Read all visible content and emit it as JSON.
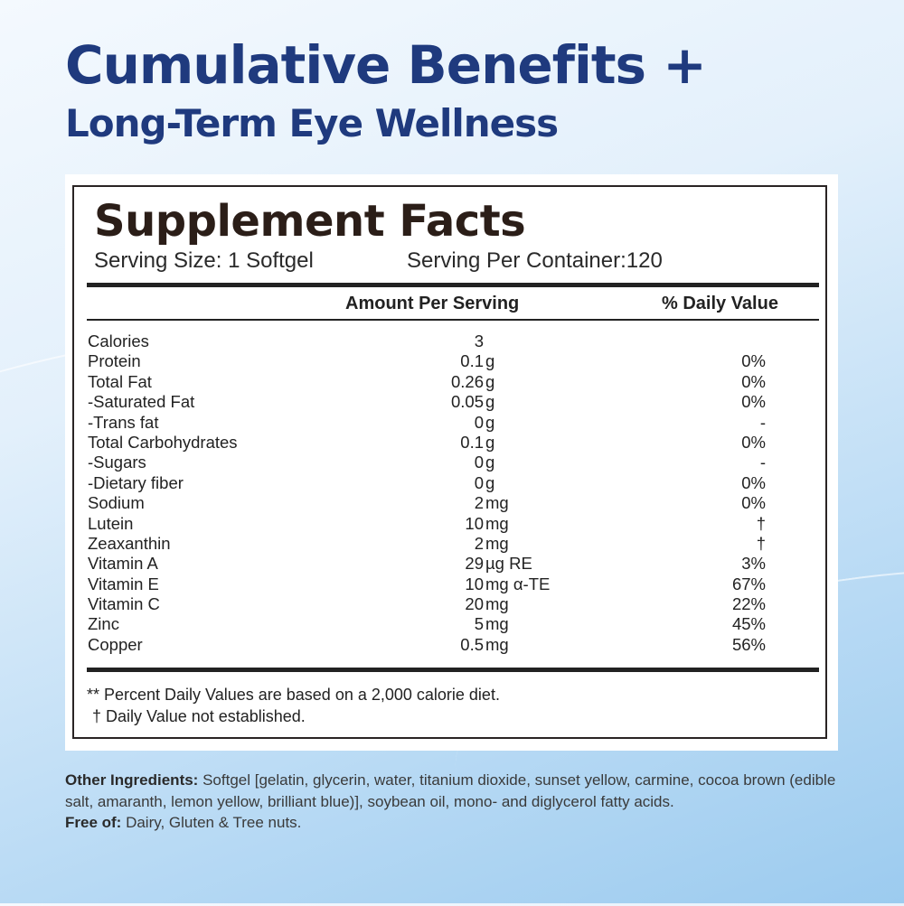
{
  "title": {
    "line1": "Cumulative Benefits +",
    "line2": "Long-Term Eye Wellness"
  },
  "facts": {
    "heading": "Supplement Facts",
    "serving_size": "Serving Size: 1 Softgel",
    "servings_per_container": "Serving Per Container:120",
    "col_amount": "Amount Per Serving",
    "col_dv": "% Daily Value",
    "rows": [
      {
        "name": "Calories",
        "num": "3",
        "unit": "",
        "dv": ""
      },
      {
        "name": "Protein",
        "num": "0.1",
        "unit": "g",
        "dv": "0%"
      },
      {
        "name": "Total Fat",
        "num": "0.26",
        "unit": "g",
        "dv": "0%"
      },
      {
        "name": "-Saturated Fat",
        "num": "0.05",
        "unit": "g",
        "dv": "0%"
      },
      {
        "name": "-Trans fat",
        "num": "0",
        "unit": "g",
        "dv": "-"
      },
      {
        "name": "Total Carbohydrates",
        "num": "0.1",
        "unit": "g",
        "dv": "0%"
      },
      {
        "name": "-Sugars",
        "num": "0",
        "unit": "g",
        "dv": "-"
      },
      {
        "name": "-Dietary fiber",
        "num": "0",
        "unit": "g",
        "dv": "0%"
      },
      {
        "name": "Sodium",
        "num": "2",
        "unit": "mg",
        "dv": "0%"
      },
      {
        "name": "Lutein",
        "num": "10",
        "unit": "mg",
        "dv": "†"
      },
      {
        "name": "Zeaxanthin",
        "num": "2",
        "unit": "mg",
        "dv": "†"
      },
      {
        "name": "Vitamin A",
        "num": "29",
        "unit": "µg RE",
        "dv": "3%"
      },
      {
        "name": "Vitamin E",
        "num": "10",
        "unit": "mg α-TE",
        "dv": "67%"
      },
      {
        "name": "Vitamin C",
        "num": "20",
        "unit": "mg",
        "dv": "22%"
      },
      {
        "name": "Zinc",
        "num": "5",
        "unit": "mg",
        "dv": "45%"
      },
      {
        "name": "Copper",
        "num": "0.5",
        "unit": "mg",
        "dv": "56%"
      }
    ],
    "footnote1": "** Percent Daily Values are based on a 2,000 calorie diet.",
    "footnote2": "† Daily Value not established."
  },
  "ingredients": {
    "label": "Other Ingredients:",
    "text": " Softgel [gelatin, glycerin, water, titanium dioxide, sunset yellow, carmine, cocoa brown (edible salt, amaranth, lemon yellow, brilliant blue)], soybean oil, mono- and diglycerol fatty acids.",
    "free_label": "Free of:",
    "free_text": " Dairy, Gluten & Tree nuts."
  }
}
